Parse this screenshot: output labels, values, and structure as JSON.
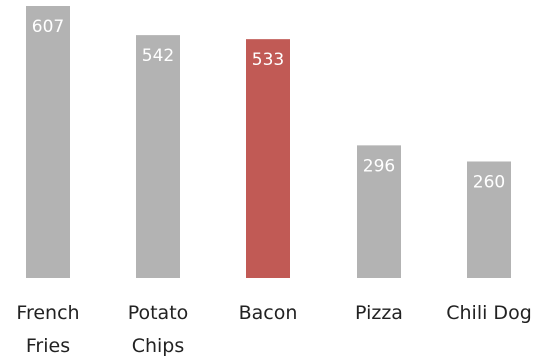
{
  "chart_data": {
    "type": "bar",
    "categories": [
      [
        "French",
        "Fries"
      ],
      [
        "Potato",
        "Chips"
      ],
      [
        "Bacon"
      ],
      [
        "Pizza"
      ],
      [
        "Chili Dog"
      ]
    ],
    "values": [
      607,
      542,
      533,
      296,
      260
    ],
    "value_labels": [
      "607",
      "542",
      "533",
      "296",
      "260"
    ],
    "highlight_index": 2,
    "grid": false,
    "legend": "none",
    "colors": {
      "bar": "#b3b3b3",
      "highlight": "#c15a55",
      "value_text": "#ffffff",
      "label_text": "#222222"
    }
  }
}
